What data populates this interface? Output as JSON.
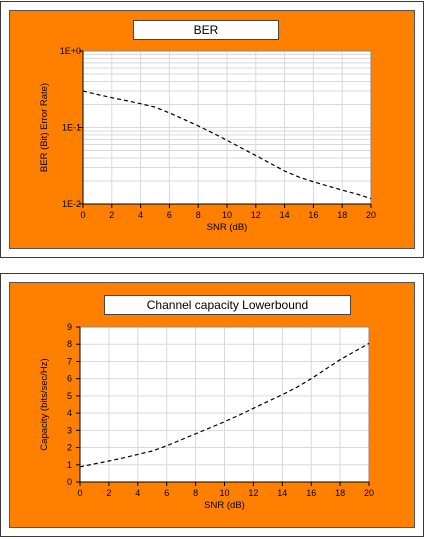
{
  "colors": {
    "panel_bg": "#ff8000",
    "plot_bg": "#ffffff",
    "grid": "#d9d9d9",
    "line": "#000000"
  },
  "chart_data": [
    {
      "type": "line",
      "title": "BER",
      "xlabel": "SNR (dB)",
      "ylabel": "BER (Bit) Error Rate)",
      "xlim": [
        0,
        20
      ],
      "ylim": [
        0.01,
        1
      ],
      "y_scale": "log",
      "grid": true,
      "line_style": "dashed",
      "x_ticks": [
        "0",
        "2",
        "4",
        "6",
        "8",
        "10",
        "12",
        "14",
        "16",
        "18",
        "20"
      ],
      "y_ticks": [
        "1E+0",
        "1E-1",
        "1E-2"
      ],
      "x": [
        0,
        1,
        2,
        3,
        4,
        5,
        6,
        7,
        8,
        9,
        10,
        11,
        12,
        13,
        14,
        15,
        16,
        17,
        18,
        19,
        20
      ],
      "values": [
        0.3,
        0.27,
        0.245,
        0.225,
        0.205,
        0.185,
        0.155,
        0.128,
        0.105,
        0.085,
        0.068,
        0.054,
        0.043,
        0.034,
        0.027,
        0.0225,
        0.0195,
        0.0172,
        0.0152,
        0.0135,
        0.0118
      ]
    },
    {
      "type": "line",
      "title": "Channel capacity Lowerbound",
      "xlabel": "SNR (dB)",
      "ylabel": "Capacity (bits/sec/Hz)",
      "xlim": [
        0,
        20
      ],
      "ylim": [
        0,
        9
      ],
      "y_scale": "linear",
      "grid": true,
      "line_style": "dashed",
      "x_ticks": [
        "0",
        "2",
        "4",
        "6",
        "8",
        "10",
        "12",
        "14",
        "16",
        "18",
        "20"
      ],
      "y_ticks": [
        "0",
        "1",
        "2",
        "3",
        "4",
        "5",
        "6",
        "7",
        "8",
        "9"
      ],
      "x": [
        0,
        1,
        2,
        3,
        4,
        5,
        6,
        7,
        8,
        9,
        10,
        11,
        12,
        13,
        14,
        15,
        16,
        17,
        18,
        19,
        20
      ],
      "values": [
        0.88,
        1.05,
        1.22,
        1.4,
        1.6,
        1.8,
        2.1,
        2.45,
        2.8,
        3.15,
        3.5,
        3.88,
        4.28,
        4.68,
        5.07,
        5.5,
        6.0,
        6.55,
        7.1,
        7.58,
        8.05
      ]
    }
  ]
}
